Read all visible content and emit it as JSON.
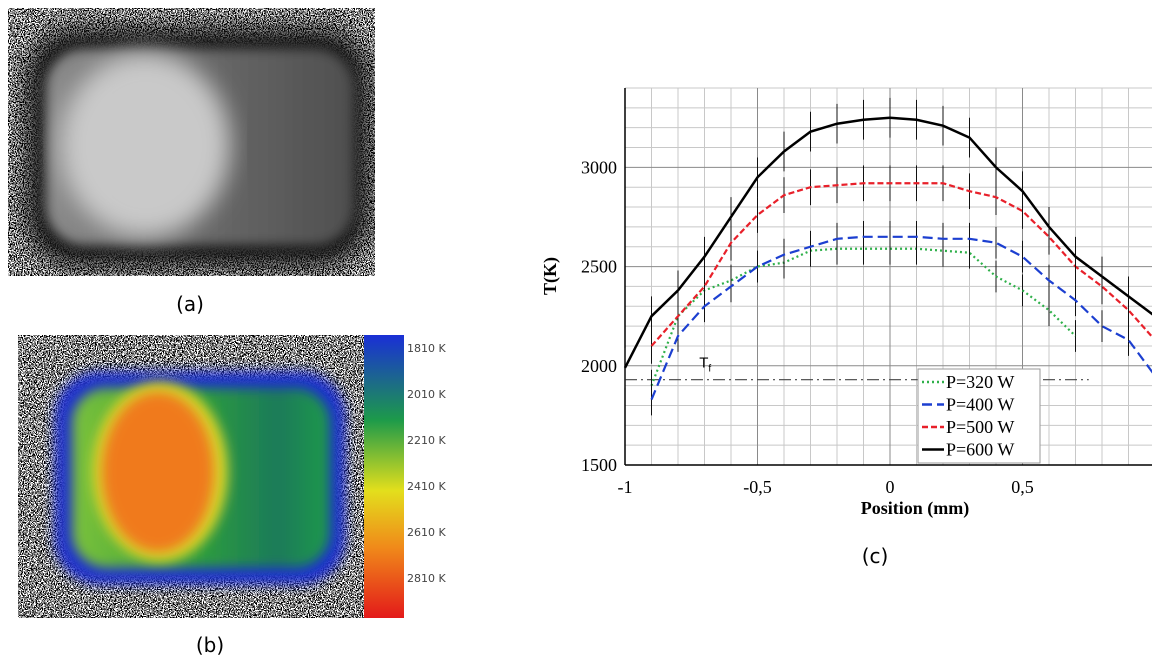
{
  "panels": {
    "a": {
      "label": "(a)"
    },
    "b": {
      "label": "(b)",
      "colorbar": {
        "labels": [
          "1810 K",
          "2010 K",
          "2210 K",
          "2410 K",
          "2610 K",
          "2810 K"
        ]
      }
    },
    "c": {
      "label": "(c)"
    }
  },
  "chart_data": {
    "type": "line",
    "xlabel": "Position (mm)",
    "ylabel": "T(K)",
    "x": [
      -1,
      -0.9,
      -0.8,
      -0.7,
      -0.6,
      -0.5,
      -0.4,
      -0.3,
      -0.2,
      -0.1,
      0,
      0.1,
      0.2,
      0.3,
      0.4,
      0.5,
      0.6,
      0.7,
      0.8,
      0.9,
      1
    ],
    "xlim": [
      -1,
      1
    ],
    "ylim": [
      1500,
      3400
    ],
    "xticks": [
      -1,
      {
        "value": -0.5,
        "label": "-0,5"
      },
      0,
      {
        "value": 0.5,
        "label": "0,5"
      },
      1
    ],
    "yticks": [
      1500,
      2000,
      2500,
      3000
    ],
    "minor_xticks": [
      -0.9,
      -0.8,
      -0.7,
      -0.6,
      -0.4,
      -0.3,
      -0.2,
      -0.1,
      0.1,
      0.2,
      0.3,
      0.4,
      0.6,
      0.7,
      0.8,
      0.9
    ],
    "minor_yticks": [
      1600,
      1700,
      1800,
      1900,
      2100,
      2200,
      2300,
      2400,
      2600,
      2700,
      2800,
      2900,
      3100,
      3200,
      3300,
      3400
    ],
    "grid": true,
    "legend": "lower right",
    "series": [
      {
        "name": "P=320 W",
        "color": "#2fb04a",
        "dash": "dot",
        "values": [
          null,
          1900,
          2250,
          2380,
          2430,
          2500,
          2520,
          2580,
          2590,
          2590,
          2590,
          2590,
          2580,
          2570,
          2450,
          2380,
          2280,
          2150,
          null,
          null,
          null
        ],
        "errors": [
          null,
          80,
          80,
          80,
          80,
          80,
          80,
          80,
          80,
          80,
          80,
          80,
          80,
          80,
          80,
          80,
          80,
          80,
          null,
          null,
          null
        ]
      },
      {
        "name": "P=400 W",
        "color": "#1c3fd0",
        "dash": "dash",
        "values": [
          null,
          1830,
          2150,
          2300,
          2400,
          2500,
          2560,
          2600,
          2640,
          2650,
          2650,
          2650,
          2640,
          2640,
          2620,
          2550,
          2430,
          2330,
          2200,
          2130,
          1950
        ],
        "errors": [
          null,
          80,
          80,
          80,
          80,
          80,
          80,
          80,
          80,
          80,
          80,
          80,
          80,
          80,
          80,
          80,
          80,
          80,
          80,
          80,
          80
        ]
      },
      {
        "name": "P=500 W",
        "color": "#e8202a",
        "dash": "short",
        "values": [
          null,
          2100,
          2250,
          2400,
          2620,
          2760,
          2860,
          2900,
          2910,
          2920,
          2920,
          2920,
          2920,
          2880,
          2850,
          2780,
          2650,
          2500,
          2400,
          2280,
          2130
        ],
        "errors": [
          null,
          90,
          90,
          90,
          90,
          90,
          90,
          90,
          90,
          90,
          90,
          90,
          90,
          90,
          90,
          90,
          90,
          90,
          90,
          90,
          90
        ]
      },
      {
        "name": "P=600 W",
        "color": "#000000",
        "dash": "solid",
        "values": [
          1990,
          2250,
          2380,
          2550,
          2750,
          2950,
          3080,
          3180,
          3220,
          3240,
          3250,
          3240,
          3210,
          3150,
          3000,
          2880,
          2700,
          2550,
          2450,
          2350,
          2250
        ],
        "errors": [
          100,
          100,
          100,
          100,
          100,
          100,
          100,
          100,
          100,
          100,
          100,
          100,
          100,
          100,
          100,
          100,
          100,
          100,
          100,
          100,
          100
        ]
      }
    ],
    "reference_lines": [
      {
        "label": "T",
        "label_sub": "f",
        "value": 1930
      }
    ]
  }
}
